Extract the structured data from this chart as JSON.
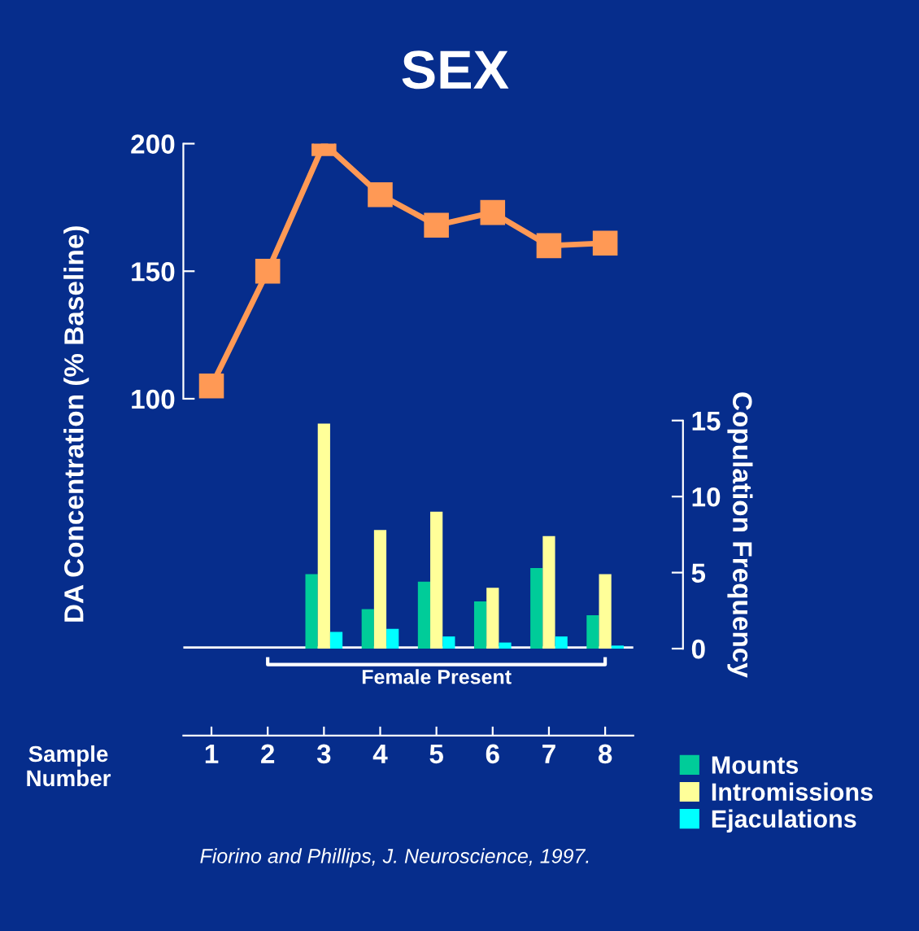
{
  "chart_data": [
    {
      "type": "line",
      "title": "SEX",
      "ylabel": "DA Concentration (% Baseline)",
      "categories": [
        "1",
        "2",
        "3",
        "4",
        "5",
        "6",
        "7",
        "8"
      ],
      "series": [
        {
          "color": "#ff9955",
          "values": [
            105,
            150,
            200,
            180,
            168,
            173,
            160,
            161
          ]
        }
      ],
      "ylim": [
        100,
        200
      ],
      "yticks": [
        100,
        150,
        200
      ],
      "tick_labels": "y",
      "marker": "square"
    },
    {
      "type": "bar",
      "xlabel": "Sample Number",
      "ylabel": "Copulation Frequency",
      "categories": [
        "1",
        "2",
        "3",
        "4",
        "5",
        "6",
        "7",
        "8"
      ],
      "series": [
        {
          "name": "Mounts",
          "color": "#00cc99",
          "values": [
            null,
            null,
            4.9,
            2.6,
            4.4,
            3.1,
            5.3,
            2.2
          ]
        },
        {
          "name": "Intromissions",
          "color": "#ffff99",
          "values": [
            null,
            null,
            14.8,
            7.8,
            9.0,
            4.0,
            7.4,
            4.9
          ]
        },
        {
          "name": "Ejaculations",
          "color": "#00ffff",
          "values": [
            null,
            null,
            1.1,
            1.3,
            0.8,
            0.4,
            0.8,
            0.2
          ]
        }
      ],
      "ylim": [
        0,
        15
      ],
      "yticks": [
        0,
        5,
        10,
        15
      ],
      "annotations": [
        "Female Present",
        "Fiorino and Phillips, J. Neuroscience, 1997."
      ],
      "legend": "bottom right"
    }
  ]
}
